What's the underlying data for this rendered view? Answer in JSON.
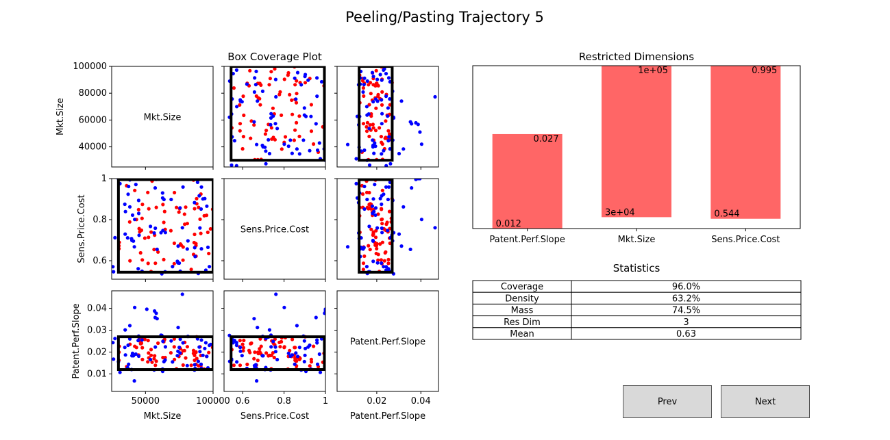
{
  "figure": {
    "title": "Peeling/Pasting Trajectory 5",
    "matrix_title": "Box Coverage Plot",
    "point_colors": {
      "in_class": "#ff0000",
      "out_class": "#0000ff"
    },
    "box_color": "#000000",
    "bar_color": "#ff6666"
  },
  "chart_data": [
    {
      "type": "scatter",
      "title": "Box Coverage Plot",
      "variables": [
        "Mkt.Size",
        "Sens.Price.Cost",
        "Patent.Perf.Slope"
      ],
      "axes": {
        "Mkt.Size": {
          "range": [
            25000,
            100000
          ],
          "ticks": [
            40000,
            60000,
            80000,
            100000
          ],
          "xticks": [
            50000,
            100000
          ]
        },
        "Sens.Price.Cost": {
          "range": [
            0.51,
            1.0
          ],
          "ticks": [
            0.6,
            0.8,
            1.0
          ],
          "xticks": [
            0.6,
            0.8,
            1.0
          ]
        },
        "Patent.Perf.Slope": {
          "range": [
            0.002,
            0.048
          ],
          "ticks": [
            0.01,
            0.02,
            0.03,
            0.04
          ],
          "xticks": [
            0.02,
            0.04
          ]
        }
      },
      "box": {
        "Mkt.Size": [
          30000,
          100000
        ],
        "Sens.Price.Cost": [
          0.544,
          0.995
        ],
        "Patent.Perf.Slope": [
          0.012,
          0.027
        ]
      },
      "series": [
        {
          "class": "red",
          "n": 70
        },
        {
          "class": "blue",
          "n": 70
        }
      ]
    },
    {
      "type": "bar",
      "title": "Restricted Dimensions",
      "categories": [
        "Patent.Perf.Slope",
        "Mkt.Size",
        "Sens.Price.Cost"
      ],
      "normalized_lower": [
        0.0,
        0.07,
        0.06
      ],
      "normalized_upper": [
        0.58,
        1.0,
        1.0
      ],
      "lower_labels": [
        "0.012",
        "3e+04",
        "0.544"
      ],
      "upper_labels": [
        "0.027",
        "1e+05",
        "0.995"
      ]
    },
    {
      "type": "table",
      "title": "Statistics",
      "rows": [
        {
          "label": "Coverage",
          "value": "96.0%"
        },
        {
          "label": "Density",
          "value": "63.2%"
        },
        {
          "label": "Mass",
          "value": "74.5%"
        },
        {
          "label": "Res Dim",
          "value": "3"
        },
        {
          "label": "Mean",
          "value": "0.63"
        }
      ]
    }
  ],
  "buttons": {
    "prev": "Prev",
    "next": "Next"
  }
}
